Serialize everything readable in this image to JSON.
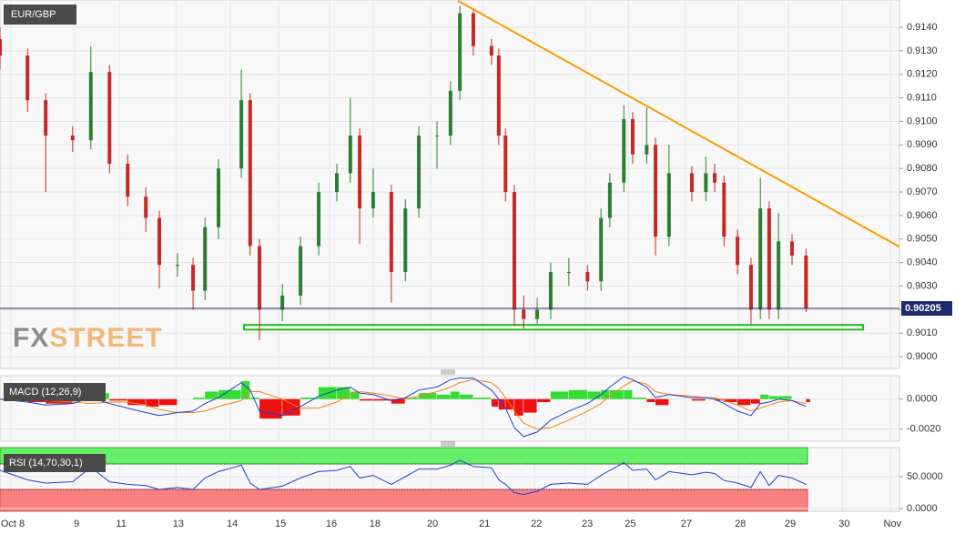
{
  "chart_data": [
    {
      "type": "candlestick",
      "title": "EUR/GBP",
      "watermark": [
        "FX",
        "STREET"
      ],
      "x": [
        0,
        0.53,
        0.88,
        1.4,
        1.75,
        2.11,
        2.46,
        2.81,
        3.07,
        3.42,
        3.72,
        3.95,
        4.21,
        4.65,
        4.82,
        5.0,
        5.44,
        5.79,
        6.14,
        6.49,
        6.75,
        6.93,
        7.19,
        7.54,
        7.81,
        8.07,
        8.42,
        8.68,
        8.86,
        9.12,
        9.47,
        9.61,
        9.74,
        9.91,
        10.09,
        10.35,
        10.61,
        10.96,
        11.32,
        11.58,
        11.75,
        12.02,
        12.19,
        12.46,
        12.63,
        12.89,
        13.33,
        13.6,
        13.77,
        13.95,
        14.21,
        14.47,
        14.65,
        14.82,
        15.0,
        15.26,
        15.53
      ],
      "opens": [
        0.9135,
        0.9128,
        0.9109,
        0.9094,
        0.9092,
        0.9121,
        0.9082,
        0.9068,
        0.9059,
        0.9039,
        0.9039,
        0.9028,
        0.9055,
        0.908,
        0.9109,
        0.9047,
        0.902,
        0.9026,
        0.9047,
        0.907,
        0.9078,
        0.9094,
        0.9063,
        0.907,
        0.9036,
        0.9063,
        0.9094,
        0.9094,
        0.9113,
        0.9146,
        0.9132,
        0.9128,
        0.9094,
        0.907,
        0.902,
        0.9016,
        0.902,
        0.9036,
        0.9036,
        0.9032,
        0.9059,
        0.9074,
        0.9101,
        0.9086,
        0.909,
        0.9051,
        0.9078,
        0.907,
        0.9078,
        0.9074,
        0.9051,
        0.9039,
        0.902,
        0.9063,
        0.902,
        0.9049,
        0.9043
      ],
      "highs": [
        0.914,
        0.9131,
        0.9112,
        0.9098,
        0.9132,
        0.9124,
        0.9086,
        0.9072,
        0.9062,
        0.9044,
        0.9042,
        0.9059,
        0.9084,
        0.9122,
        0.9112,
        0.905,
        0.9031,
        0.9051,
        0.9074,
        0.9082,
        0.911,
        0.9097,
        0.908,
        0.9073,
        0.9067,
        0.9098,
        0.91,
        0.9117,
        0.9149,
        0.9148,
        0.9135,
        0.9131,
        0.9097,
        0.9073,
        0.9026,
        0.9025,
        0.904,
        0.9042,
        0.9039,
        0.9063,
        0.9078,
        0.9107,
        0.9104,
        0.9106,
        0.9093,
        0.909,
        0.9081,
        0.9085,
        0.9082,
        0.9077,
        0.9054,
        0.9042,
        0.9076,
        0.9066,
        0.9061,
        0.9052,
        0.9046
      ],
      "lows": [
        0.9122,
        0.9104,
        0.907,
        0.9087,
        0.9088,
        0.9078,
        0.9064,
        0.9053,
        0.9029,
        0.9034,
        0.902,
        0.9024,
        0.905,
        0.9076,
        0.9043,
        0.9007,
        0.9015,
        0.9022,
        0.9043,
        0.9066,
        0.9074,
        0.9048,
        0.9059,
        0.9023,
        0.9032,
        0.9059,
        0.908,
        0.909,
        0.9109,
        0.9128,
        0.9124,
        0.909,
        0.9066,
        0.9013,
        0.9012,
        0.9014,
        0.9016,
        0.903,
        0.9028,
        0.9028,
        0.9055,
        0.907,
        0.9082,
        0.9082,
        0.9043,
        0.9047,
        0.9066,
        0.9066,
        0.907,
        0.9047,
        0.9035,
        0.9014,
        0.9016,
        0.9016,
        0.9016,
        0.9039,
        0.9019
      ],
      "closes": [
        0.9128,
        0.9109,
        0.9094,
        0.9092,
        0.9121,
        0.9082,
        0.9068,
        0.9059,
        0.9039,
        0.9039,
        0.9028,
        0.9055,
        0.908,
        0.9109,
        0.9047,
        0.902,
        0.9026,
        0.9047,
        0.907,
        0.9078,
        0.9094,
        0.9063,
        0.907,
        0.9036,
        0.9063,
        0.9094,
        0.9094,
        0.9113,
        0.9146,
        0.9132,
        0.9128,
        0.9094,
        0.907,
        0.902,
        0.9016,
        0.902,
        0.9036,
        0.9036,
        0.9032,
        0.9059,
        0.9074,
        0.9101,
        0.9086,
        0.909,
        0.9051,
        0.9078,
        0.907,
        0.9078,
        0.9074,
        0.9051,
        0.9039,
        0.902,
        0.9063,
        0.902,
        0.9049,
        0.9043,
        0.90205
      ],
      "up_color": "#2e7d32",
      "down_color": "#c62828",
      "xlim": [
        0,
        17.33
      ],
      "xticks": [
        {
          "value": 0.21,
          "label": "Oct 8"
        },
        {
          "value": 1.44,
          "label": "9"
        },
        {
          "value": 2.3,
          "label": "11"
        },
        {
          "value": 3.4,
          "label": "13"
        },
        {
          "value": 4.44,
          "label": "14"
        },
        {
          "value": 5.37,
          "label": "15"
        },
        {
          "value": 6.35,
          "label": "16"
        },
        {
          "value": 7.19,
          "label": "18"
        },
        {
          "value": 8.3,
          "label": "20"
        },
        {
          "value": 9.3,
          "label": "21"
        },
        {
          "value": 10.3,
          "label": "22"
        },
        {
          "value": 11.28,
          "label": "23"
        },
        {
          "value": 12.11,
          "label": "25"
        },
        {
          "value": 13.19,
          "label": "27"
        },
        {
          "value": 14.23,
          "label": "28"
        },
        {
          "value": 15.19,
          "label": "29"
        },
        {
          "value": 16.23,
          "label": "30"
        },
        {
          "value": 17.16,
          "label": "Nov"
        }
      ],
      "ylim": [
        0.8995,
        0.91516
      ],
      "yticks": [
        {
          "value": 0.9,
          "label": "0.9000"
        },
        {
          "value": 0.901,
          "label": "0.9010"
        },
        {
          "value": 0.902,
          "label": "0.9020"
        },
        {
          "value": 0.903,
          "label": "0.9030"
        },
        {
          "value": 0.904,
          "label": "0.9040"
        },
        {
          "value": 0.905,
          "label": "0.9050"
        },
        {
          "value": 0.906,
          "label": "0.9060"
        },
        {
          "value": 0.907,
          "label": "0.9070"
        },
        {
          "value": 0.908,
          "label": "0.9080"
        },
        {
          "value": 0.909,
          "label": "0.9090"
        },
        {
          "value": 0.91,
          "label": "0.9100"
        },
        {
          "value": 0.911,
          "label": "0.9110"
        },
        {
          "value": 0.912,
          "label": "0.9120"
        },
        {
          "value": 0.913,
          "label": "0.9130"
        },
        {
          "value": 0.914,
          "label": "0.9140"
        }
      ],
      "grid": true,
      "current_price": 0.90205,
      "current_price_color": "#1c2b6b",
      "trendline": {
        "x": [
          8.82,
          17.33
        ],
        "y": [
          0.91513,
          0.90467
        ],
        "color": "#ff9900"
      },
      "support_zone": {
        "x": [
          4.7,
          16.63
        ],
        "y": [
          0.90135,
          0.90115
        ],
        "color": "#22bb22"
      }
    },
    {
      "type": "macd",
      "title": "MACD (12,26,9)",
      "macd": [
        0,
        -0.0002,
        -0.0004,
        -0.0003,
        0.0001,
        -0.0003,
        -0.0006,
        -0.0009,
        -0.0011,
        -0.0009,
        -0.0008,
        -0.0003,
        0.0001,
        0.0011,
        0.0006,
        -0.0008,
        -0.0011,
        -0.0005,
        0.0002,
        0.0006,
        0.0008,
        0.0004,
        0.0003,
        -0.0001,
        0.0001,
        0.0006,
        0.0008,
        0.0013,
        0.0014,
        0.0014,
        0.0006,
        0,
        -0.0006,
        -0.0019,
        -0.0025,
        -0.0022,
        -0.0014,
        -0.0008,
        -0.0003,
        0.0003,
        0.0008,
        0.0015,
        0.0013,
        0.0008,
        0.0001,
        0.0003,
        0.0001,
        0.0001,
        0,
        -0.0003,
        -0.0008,
        -0.0011,
        -0.0003,
        -0.0002,
        0,
        -0.0001,
        -0.0005
      ],
      "signal": [
        0,
        0,
        -0.0001,
        -0.0002,
        -0.0003,
        -0.0002,
        -0.0002,
        -0.0004,
        -0.0007,
        -0.0009,
        -0.0009,
        -0.0008,
        -0.0005,
        -0.0001,
        0.0005,
        0.0005,
        0,
        -0.0006,
        -0.0006,
        -0.0002,
        0.0003,
        0.0005,
        0.0004,
        0.0002,
        0,
        0.0002,
        0.0005,
        0.0008,
        0.0011,
        0.0013,
        0.0011,
        0.0007,
        0.0001,
        -0.0008,
        -0.0016,
        -0.002,
        -0.0019,
        -0.0014,
        -0.0008,
        -0.0003,
        0.0002,
        0.0009,
        0.0012,
        0.001,
        0.0005,
        0.0003,
        0.0002,
        0.0001,
        0.0001,
        -0.0001,
        -0.0004,
        -0.0008,
        -0.0006,
        -0.0004,
        -0.0002,
        -0.0001,
        -0.0003
      ],
      "histogram": [
        0,
        -0.0002,
        -0.0003,
        -0.0001,
        0.0004,
        -0.0001,
        -0.0004,
        -0.0005,
        -0.0004,
        0,
        0.0001,
        0.0005,
        0.0006,
        0.0012,
        0.0001,
        -0.0013,
        -0.0011,
        0.0001,
        0.0008,
        0.0008,
        0.0005,
        -0.0001,
        -0.0001,
        -0.0003,
        0.0001,
        0.0004,
        0.0003,
        0.0005,
        0.0003,
        0.0001,
        -0.0005,
        -0.0007,
        -0.0007,
        -0.0011,
        -0.0009,
        -0.0002,
        0.0005,
        0.0006,
        0.0005,
        0.0006,
        0.0006,
        0.0006,
        0.0001,
        -0.0002,
        -0.0004,
        0,
        -0.0001,
        0,
        -0.0001,
        -0.0002,
        -0.0004,
        -0.0003,
        0.0003,
        0.0002,
        0.0002,
        0,
        -0.0002
      ],
      "macd_color": "#1f3fd6",
      "signal_color": "#ff7f0e",
      "positive_color": "#33dd33",
      "negative_color": "#ee1111",
      "ylim": [
        -0.00281,
        0.00156
      ],
      "yticks": [
        {
          "value": 0,
          "label": "0.0000"
        },
        {
          "value": -0.002,
          "label": "-0.0020"
        }
      ]
    },
    {
      "type": "rsi",
      "title": "RSI (14,70,30,1)",
      "values": [
        60,
        45,
        40,
        42,
        65,
        42,
        38,
        36,
        30,
        33,
        30,
        48,
        58,
        68,
        40,
        30,
        35,
        48,
        58,
        60,
        66,
        48,
        52,
        38,
        50,
        62,
        62,
        68,
        76,
        66,
        64,
        45,
        38,
        25,
        22,
        27,
        38,
        40,
        38,
        52,
        60,
        72,
        60,
        62,
        45,
        58,
        53,
        57,
        55,
        44,
        40,
        33,
        58,
        36,
        52,
        48,
        38
      ],
      "color": "#2040d0",
      "overbought": 70,
      "oversold": 30,
      "overbought_color": "#66ee66",
      "oversold_color": "#f88080",
      "ylim": [
        -4.3,
        95.7
      ],
      "yticks": [
        {
          "value": 50,
          "label": "50.0000"
        },
        {
          "value": 0,
          "label": "0.0000"
        }
      ]
    }
  ]
}
